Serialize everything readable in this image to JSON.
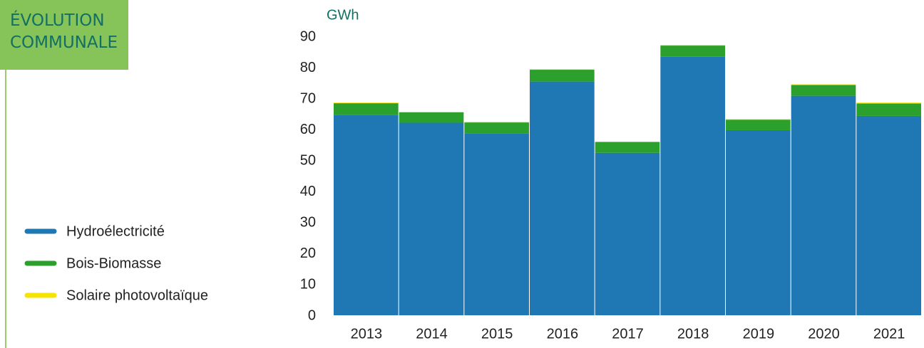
{
  "chart_data": {
    "type": "stacked_bar",
    "title": "ÉVOLUTION COMMUNALE",
    "y_label": "GWh",
    "categories": [
      "2013",
      "2014",
      "2015",
      "2016",
      "2017",
      "2018",
      "2019",
      "2020",
      "2021"
    ],
    "series": [
      {
        "name": "Hydroélectricité",
        "color": "#1f77b4",
        "values": [
          64.6,
          62.1,
          58.7,
          75.4,
          52.4,
          83.4,
          59.7,
          70.8,
          64.3
        ]
      },
      {
        "name": "Bois-Biomasse",
        "color": "#2ca02c",
        "values": [
          3.8,
          3.4,
          3.5,
          3.8,
          3.5,
          3.6,
          3.4,
          3.5,
          4.0
        ]
      },
      {
        "name": "Solaire photovoltaïque",
        "color": "#f5e400",
        "values": [
          0.2,
          0.1,
          0.2,
          0.2,
          0.1,
          0.2,
          0.2,
          0.2,
          0.3
        ]
      }
    ],
    "ylim": [
      0,
      90
    ],
    "yticks": [
      0,
      10,
      20,
      30,
      40,
      50,
      60,
      70,
      80,
      90
    ],
    "stack_order": "bottom_to_top_reverse_legend"
  }
}
